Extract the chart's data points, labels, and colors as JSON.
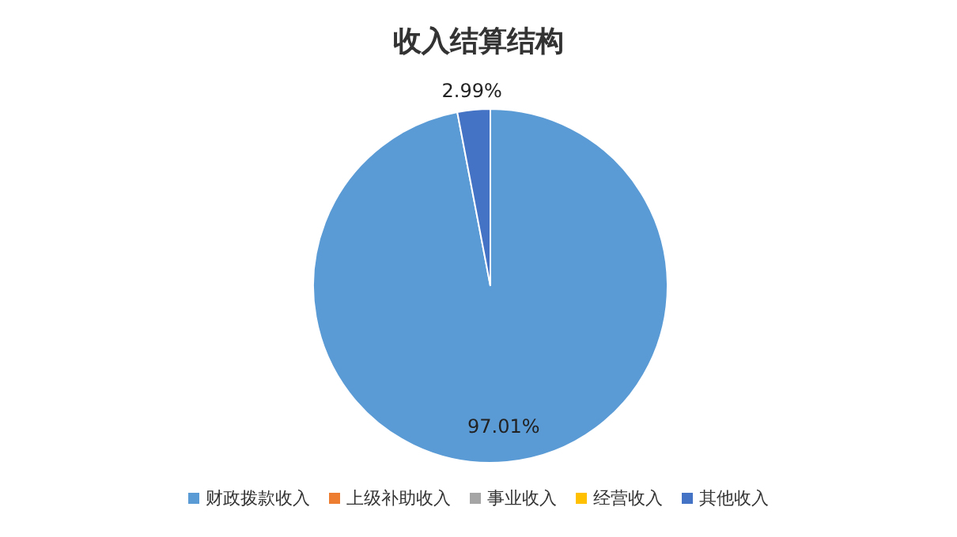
{
  "chart_data": {
    "type": "pie",
    "title": "收入结算结构",
    "categories": [
      "财政拨款收入",
      "上级补助收入",
      "事业收入",
      "经营收入",
      "其他收入"
    ],
    "values": [
      97.01,
      0,
      0,
      0,
      2.99
    ],
    "colors": [
      "#5b9bd5",
      "#ed7d31",
      "#a5a5a5",
      "#ffc000",
      "#4472c4"
    ],
    "value_labels": [
      "97.01%",
      null,
      null,
      null,
      "2.99%"
    ],
    "legend": "bottom"
  }
}
